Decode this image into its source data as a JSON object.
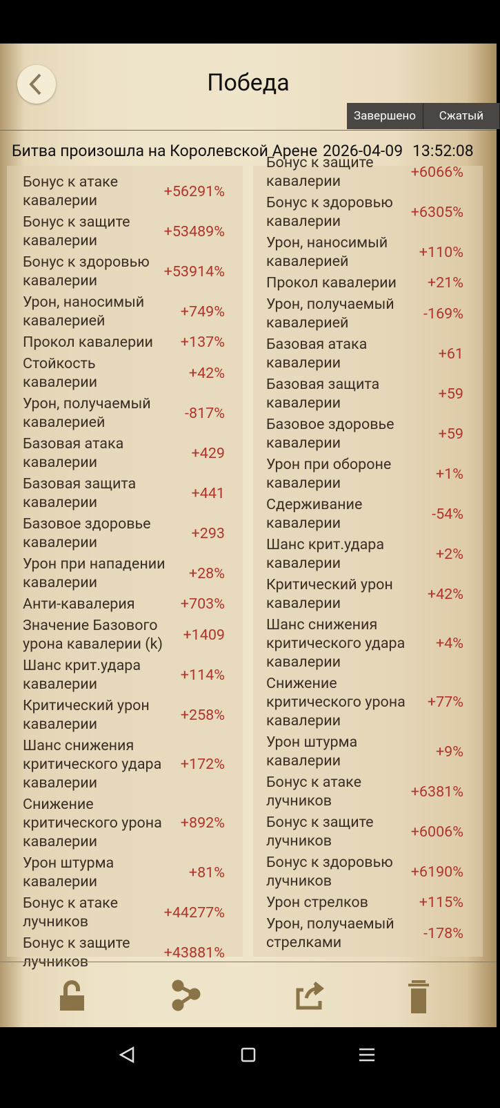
{
  "header": {
    "title": "Победа"
  },
  "tabs": [
    "Завершено",
    "Сжатый"
  ],
  "info": {
    "location": "Битва произошла на Королевской Арене",
    "date": "2026-04-09",
    "time": "13:52:08"
  },
  "left_column": {
    "rows": [
      {
        "label": "Бонус к атаке кавалерии",
        "value": "+56291%"
      },
      {
        "label": "Бонус к защите кавалерии",
        "value": "+53489%"
      },
      {
        "label": "Бонус к здоровью кавалерии",
        "value": "+53914%"
      },
      {
        "label": "Урон, наносимый кавалерией",
        "value": "+749%"
      },
      {
        "label": "Прокол кавалерии",
        "value": "+137%"
      },
      {
        "label": "Стойкость кавалерии",
        "value": "+42%"
      },
      {
        "label": "Урон, получаемый кавалерией",
        "value": "-817%"
      },
      {
        "label": "Базовая атака кавалерии",
        "value": "+429"
      },
      {
        "label": "Базовая защита кавалерии",
        "value": "+441"
      },
      {
        "label": "Базовое здоровье кавалерии",
        "value": "+293"
      },
      {
        "label": "Урон при нападении кавалерии",
        "value": "+28%"
      },
      {
        "label": "Анти-кавалерия",
        "value": "+703%"
      },
      {
        "label": "Значение Базового урона кавалерии (k)",
        "value": "+1409"
      },
      {
        "label": "Шанс крит.удара кавалерии",
        "value": "+114%"
      },
      {
        "label": "Критический урон кавалерии",
        "value": "+258%"
      },
      {
        "label": "Шанс снижения критического удара кавалерии",
        "value": "+172%"
      },
      {
        "label": "Снижение критического урона кавалерии",
        "value": "+892%"
      },
      {
        "label": "Урон штурма кавалерии",
        "value": "+81%"
      },
      {
        "label": "Бонус к атаке лучников",
        "value": "+44277%"
      },
      {
        "label": "Бонус к защите лучников",
        "value": "+43881%"
      }
    ]
  },
  "right_column": {
    "rows": [
      {
        "label": "Бонус к защите кавалерии",
        "value": "+6066%"
      },
      {
        "label": "Бонус к здоровью кавалерии",
        "value": "+6305%"
      },
      {
        "label": "Урон, наносимый кавалерией",
        "value": "+110%"
      },
      {
        "label": "Прокол кавалерии",
        "value": "+21%"
      },
      {
        "label": "Урон, получаемый кавалерией",
        "value": "-169%"
      },
      {
        "label": "Базовая атака кавалерии",
        "value": "+61"
      },
      {
        "label": "Базовая защита кавалерии",
        "value": "+59"
      },
      {
        "label": "Базовое здоровье кавалерии",
        "value": "+59"
      },
      {
        "label": "Урон при обороне кавалерии",
        "value": "+1%"
      },
      {
        "label": "Сдерживание кавалерии",
        "value": "-54%"
      },
      {
        "label": "Шанс крит.удара кавалерии",
        "value": "+2%"
      },
      {
        "label": "Критический урон кавалерии",
        "value": "+42%"
      },
      {
        "label": "Шанс снижения критического удара кавалерии",
        "value": "+4%"
      },
      {
        "label": "Снижение критического урона кавалерии",
        "value": "+77%"
      },
      {
        "label": "Урон штурма кавалерии",
        "value": "+9%"
      },
      {
        "label": "Бонус к атаке лучников",
        "value": "+6381%"
      },
      {
        "label": "Бонус к защите лучников",
        "value": "+6006%"
      },
      {
        "label": "Бонус к здоровью лучников",
        "value": "+6190%"
      },
      {
        "label": "Урон стрелков",
        "value": "+115%"
      },
      {
        "label": "Урон, получаемый стрелками",
        "value": "-178%"
      }
    ]
  }
}
